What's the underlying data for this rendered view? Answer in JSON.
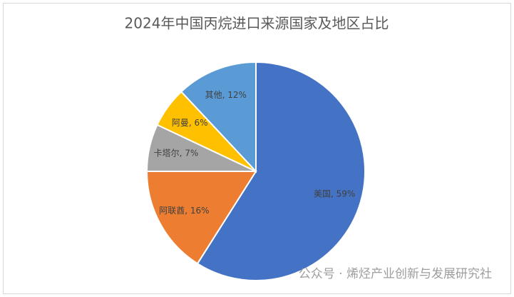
{
  "chart_data": {
    "type": "pie",
    "title": "2024年中国丙烷进口来源国家及地区占比",
    "values": [
      59,
      16,
      7,
      6,
      12
    ],
    "value_labels": [
      "美国, 59%",
      "阿联酋, 16%",
      "卡塔尔, 7%",
      "阿曼, 6%",
      "其他, 12%"
    ],
    "colors": [
      "#4472c4",
      "#ed7d31",
      "#a5a5a5",
      "#ffc000",
      "#5b9bd5"
    ]
  },
  "watermark": "公众号 · 烯烃产业创新与发展研究社"
}
